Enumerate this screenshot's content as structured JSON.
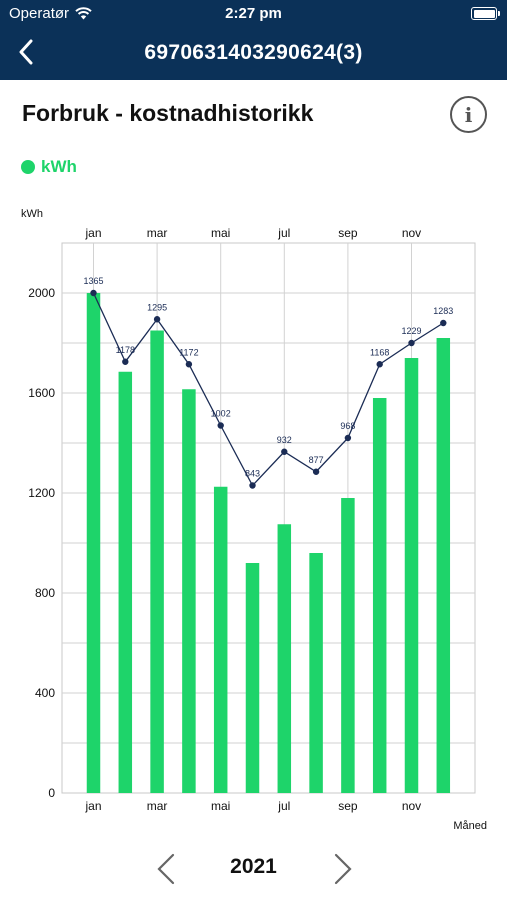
{
  "status_bar": {
    "carrier": "Operatør",
    "time": "2:27 pm",
    "wifi_icon": "wifi-icon",
    "battery_icon": "battery-icon"
  },
  "nav": {
    "back_icon": "chevron-left-icon",
    "title": "6970631403290624(3)"
  },
  "page": {
    "title": "Forbruk - kostnadhistorikk",
    "info_icon": "info-icon",
    "info_glyph": "i"
  },
  "legend": {
    "label": "kWh",
    "color": "#1ed46a"
  },
  "chart_data": {
    "type": "bar",
    "ylabel": "kWh",
    "xlabel": "Måned",
    "ylim": [
      0,
      2200
    ],
    "yticks": [
      "0",
      "400",
      "800",
      "1200",
      "1600",
      "2000"
    ],
    "ytick_values": [
      0,
      400,
      800,
      1200,
      1600,
      2000
    ],
    "month_labels": [
      "jan",
      "mar",
      "mai",
      "jul",
      "sep",
      "nov"
    ],
    "month_label_indices": [
      0,
      2,
      4,
      6,
      8,
      10
    ],
    "bar_color": "#1ed46a",
    "line_color": "#1b2c55",
    "grid": true,
    "bars": [
      2000,
      1685,
      1850,
      1615,
      1225,
      920,
      1075,
      960,
      1180,
      1580,
      1740,
      1820
    ],
    "line": [
      2000,
      1725,
      1895,
      1715,
      1470,
      1230,
      1365,
      1285,
      1420,
      1715,
      1800,
      1880
    ],
    "line_labels": [
      "1365",
      "1178",
      "1295",
      "1172",
      "1002",
      "843",
      "932",
      "877",
      "968",
      "1168",
      "1229",
      "1283"
    ]
  },
  "year_nav": {
    "year": "2021",
    "prev_icon": "chevron-left-icon",
    "next_icon": "chevron-right-icon"
  }
}
